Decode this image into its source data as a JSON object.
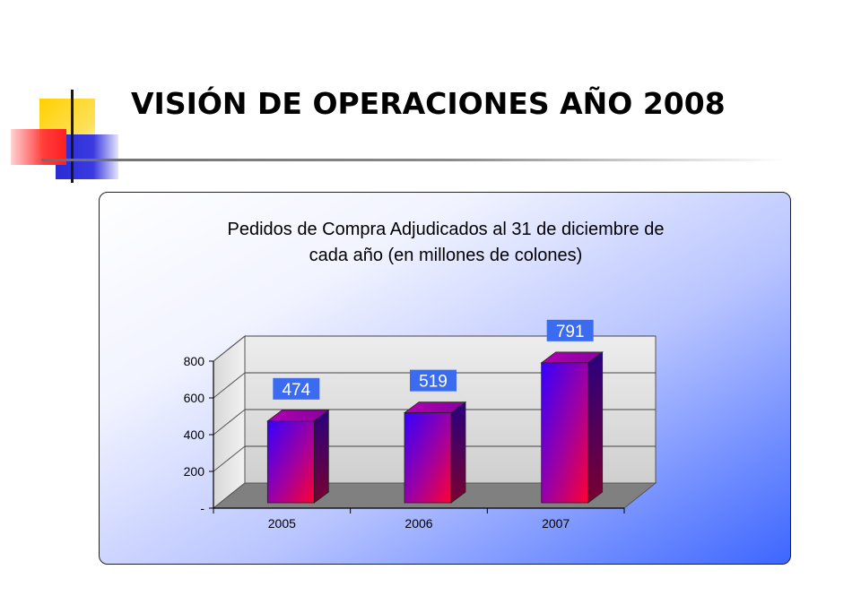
{
  "slide": {
    "title": "VISIÓN DE OPERACIONES AÑO 2008"
  },
  "chart_data": {
    "type": "bar",
    "title": "Pedidos de Compra Adjudicados al 31 de diciembre de cada año (en millones de colones)",
    "title_lines": [
      "Pedidos de Compra Adjudicados al 31 de diciembre de",
      "cada año (en millones de colones)"
    ],
    "categories": [
      "2005",
      "2006",
      "2007"
    ],
    "values": [
      474,
      519,
      791
    ],
    "data_labels": [
      "474",
      "519",
      "791"
    ],
    "y_ticks": [
      0,
      200,
      400,
      600,
      800
    ],
    "y_tick_labels": [
      "-",
      "200",
      "400",
      "600",
      "800"
    ],
    "ylim": [
      0,
      800
    ],
    "grid": true,
    "legend": "none",
    "style": "3d-column",
    "colors": {
      "bar_gradient_start": "#3a00ff",
      "bar_gradient_end": "#ff0040",
      "data_label_bg": "#3b6cf0",
      "floor": "#808080",
      "back_wall": "#dcdcdc"
    }
  }
}
